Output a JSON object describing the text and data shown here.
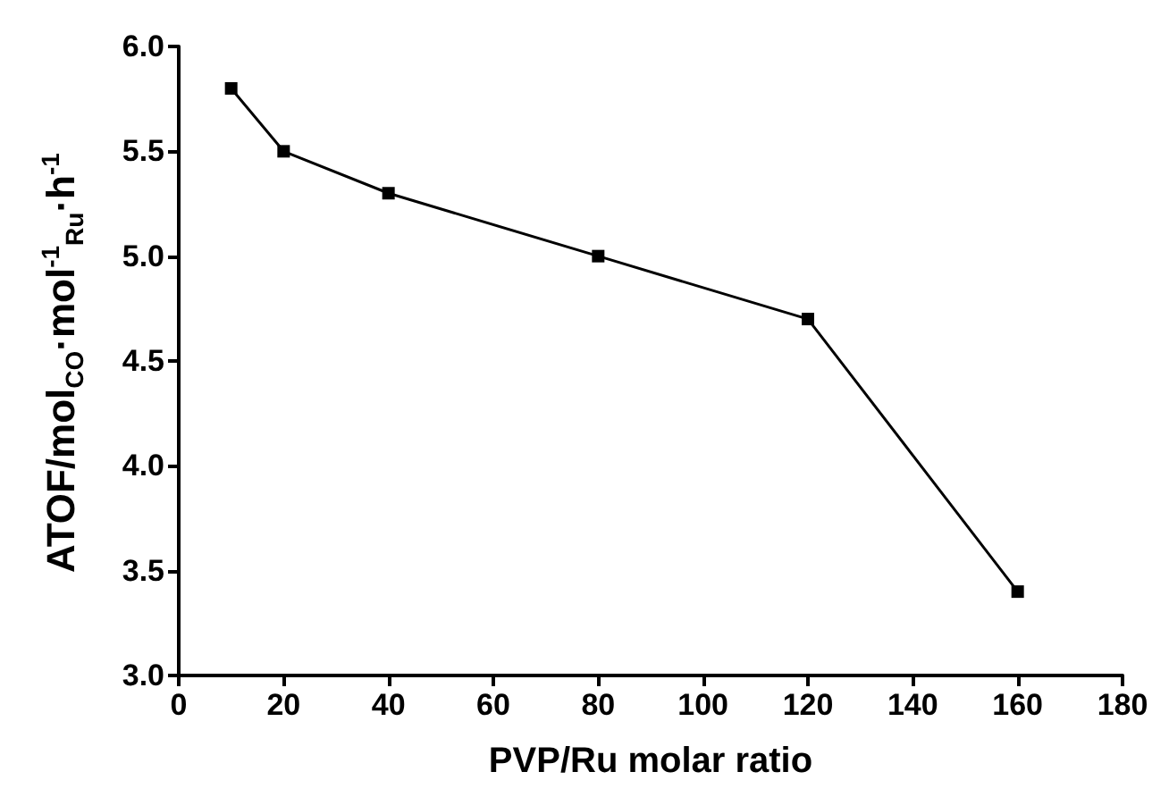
{
  "chart_data": {
    "type": "line",
    "xlabel": "PVP/Ru molar ratio",
    "ylabel": "ATOF/mol$_{CO}$·mol$^{-1}$$_{Ru}$·h$^{-1}$",
    "x": [
      10,
      20,
      40,
      80,
      120,
      160
    ],
    "series": [
      {
        "color": "#000000",
        "values": [
          5.8,
          5.5,
          5.3,
          5.0,
          4.7,
          3.4
        ]
      }
    ],
    "xlim": [
      0,
      180
    ],
    "xticks": [
      0,
      20,
      40,
      60,
      80,
      100,
      120,
      140,
      160,
      180
    ],
    "ylim": [
      3.0,
      6.0
    ],
    "yticks": [
      {
        "value": 3,
        "label": "3.0"
      },
      3.5,
      {
        "value": 4,
        "label": "4.0"
      },
      4.5,
      {
        "value": 5,
        "label": "5.0"
      },
      5.5,
      {
        "value": 6,
        "label": "6.0"
      }
    ],
    "grid": false,
    "marker": "square",
    "line_style": "solid"
  }
}
